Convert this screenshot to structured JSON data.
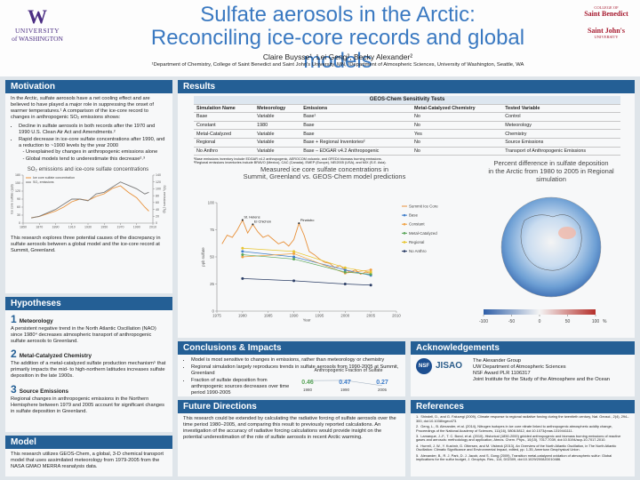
{
  "header": {
    "title_line1": "Sulfate aerosols in the Arctic:",
    "title_line2": "Reconciling ice-core records and global models",
    "authors": "Claire Buysse¹, Lei Geng², Becky Alexander²",
    "affiliations": "¹Department of Chemistry, College of Saint Benedict and Saint John's University, MN, ²Department of Atmospheric Sciences, University of Washington, Seattle, WA",
    "left_logo": [
      "UNIVERSITY",
      "of WASHINGTON"
    ],
    "right_logo": [
      "COLLEGE OF",
      "Saint Benedict",
      "Saint John's",
      "UNIVERSITY"
    ]
  },
  "motivation": {
    "title": "Motivation",
    "intro": "In the Arctic, sulfate aerosols have a net cooling effect and are believed to have played a major role in suppressing the onset of warmer temperatures.¹ A comparison of the ice-core record to changes in anthropogenic SO₂ emissions shows:",
    "bullets": [
      {
        "text": "Decline in sulfate aerosols in both records after the 1970 and 1990 U.S. Clean Air Act and Amendments.²",
        "sub": []
      },
      {
        "text": "Rapid decrease in ice-core sulfate concentrations after 1990, and a reduction to ~1900 levels by the year 2000",
        "sub": [
          "Unexplained by changes in anthropogenic emissions alone",
          "Global models tend to underestimate this decrease²˒³"
        ]
      }
    ],
    "chart": {
      "type": "line",
      "title_lines": [
        "SO₂ emissions and ice-core sulfate concentrations"
      ],
      "ylabel": "Ice core sulfate (ppb)",
      "y2label": "SO₂ emissions (Tg)",
      "xlim": [
        1850,
        2010
      ],
      "xticks": [
        1850,
        1870,
        1890,
        1910,
        1930,
        1950,
        1970,
        1990,
        2010
      ],
      "ylim": [
        0,
        180
      ],
      "yticks": [
        0,
        30,
        60,
        90,
        120,
        150,
        180
      ],
      "y2lim": [
        0,
        140
      ],
      "y2ticks": [
        0,
        20,
        40,
        60,
        80,
        100,
        120,
        140
      ],
      "legend": "upper left",
      "x": [
        1860,
        1870,
        1880,
        1890,
        1900,
        1910,
        1920,
        1930,
        1940,
        1950,
        1960,
        1970,
        1980,
        1990,
        2000,
        2005
      ],
      "series": [
        {
          "name": "Ice core sulfate concentration",
          "color": "#e8913a",
          "values": [
            20,
            25,
            35,
            45,
            60,
            80,
            90,
            85,
            100,
            110,
            130,
            140,
            115,
            95,
            60,
            45
          ]
        },
        {
          "name": "SO₂ emissions",
          "color": "#7a7a7a",
          "axis": "y2",
          "values": [
            15,
            20,
            30,
            40,
            55,
            70,
            70,
            65,
            85,
            90,
            105,
            120,
            110,
            100,
            85,
            90
          ]
        }
      ]
    },
    "closing": "This research explores three potential causes of the discrepancy in sulfate aerosols between a global model and the ice-core record at Summit, Greenland."
  },
  "hypotheses": {
    "title": "Hypotheses",
    "items": [
      {
        "number": 1,
        "name": "Meteorology",
        "text": "A persistent negative trend in the North Atlantic Oscillation (NAO) since 1980⁴ decreases atmospheric transport of anthropogenic sulfate aerosols to Greenland."
      },
      {
        "number": 2,
        "name": "Metal-Catalyzed Chemistry",
        "text": "The addition of a metal-catalyzed sulfate production mechanism⁵ that primarily impacts the mid- to high-northern latitudes increases sulfate deposition in the late 1900s."
      },
      {
        "number": 3,
        "name": "Source Emissions",
        "text": "Regional changes in anthropogenic emissions in the Northern Hemisphere between 1979 and 2005 account for significant changes in sulfate deposition in Greenland."
      }
    ]
  },
  "model": {
    "title": "Model",
    "text": "This research utilizes GEOS-Chem, a global, 3-D chemical transport model that uses assimilated meteorology from 1979-2005 from the NASA GMAO MERRA reanalysis data."
  },
  "results": {
    "title": "Results",
    "table": {
      "title": "GEOS-Chem Sensitivity Tests",
      "columns": [
        "Simulation Name",
        "Meteorology",
        "Emissions",
        "Metal-Catalyzed Chemistry",
        "Tested Variable"
      ],
      "rows": [
        [
          "Base",
          "Variable",
          "Base¹",
          "No",
          "Control"
        ],
        [
          "Constant",
          "1980",
          "Base",
          "No",
          "Meteorology"
        ],
        [
          "Metal-Catalyzed",
          "Variable",
          "Base",
          "Yes",
          "Chemistry"
        ],
        [
          "Regional",
          "Variable",
          "Base + Regional Inventories²",
          "No",
          "Source Emissions"
        ],
        [
          "No Anthro",
          "Variable",
          "Base – EDGAR v4.2 Anthropogenic",
          "No",
          "Transport of Anthropogenic Emissions"
        ]
      ],
      "footnotes": [
        "¹Base emissions inventory include EDGAR v4.2 anthropogenic, AEROCOM volcanic, and GFED4 biomass burning emissions.",
        "²Regional emissions inventories include BRAVO (Mexico), CAC (Canada), EMEP (Europe), NEI2005 (USA), and MIX (S.E. Asia)."
      ]
    },
    "chart": {
      "type": "line",
      "title_lines": [
        "Measured ice core sulfate concentrations in",
        "Summit, Greenland vs. GEOS-Chem model predictions"
      ],
      "ylabel": "ppb sulfate",
      "xlabel": "Year",
      "xlim": [
        1975,
        2010
      ],
      "xticks": [
        1975,
        1980,
        1985,
        1990,
        1995,
        2000,
        2005,
        2010
      ],
      "ylim": [
        0,
        100
      ],
      "yticks": [
        0,
        25,
        50,
        75,
        100
      ],
      "legend": "right",
      "series": [
        {
          "name": "Summit Ice Core",
          "color": "#e8913a",
          "x": [
            1976,
            1977,
            1978,
            1979,
            1980,
            1981,
            1982,
            1983,
            1984,
            1985,
            1986,
            1987,
            1988,
            1989,
            1990,
            1991,
            1992,
            1993,
            1994,
            1995,
            1996,
            1997,
            1998,
            1999,
            2000,
            2001,
            2002,
            2003,
            2004,
            2005
          ],
          "values": [
            62,
            70,
            68,
            75,
            84,
            72,
            80,
            73,
            68,
            70,
            66,
            62,
            64,
            60,
            66,
            81,
            70,
            55,
            52,
            48,
            45,
            44,
            40,
            42,
            38,
            36,
            38,
            34,
            36,
            35
          ]
        },
        {
          "name": "Base",
          "color": "#3d7cc9",
          "markers": true,
          "x": [
            1980,
            1990,
            2000,
            2005
          ],
          "values": [
            55,
            50,
            38,
            33
          ]
        },
        {
          "name": "Constant",
          "color": "#f0a040",
          "markers": true,
          "x": [
            1980,
            1990,
            2000,
            2005
          ],
          "values": [
            50,
            53,
            35,
            38
          ]
        },
        {
          "name": "Metal-Catalyzed",
          "color": "#5aa55a",
          "markers": true,
          "x": [
            1980,
            1990,
            2000,
            2005
          ],
          "values": [
            52,
            48,
            36,
            34
          ]
        },
        {
          "name": "Regional",
          "color": "#e8c530",
          "markers": true,
          "x": [
            1980,
            1990,
            2000,
            2005
          ],
          "values": [
            58,
            55,
            40,
            36
          ]
        },
        {
          "name": "No Anthro",
          "color": "#2c3e66",
          "markers": true,
          "x": [
            1980,
            1990,
            2000,
            2005
          ],
          "values": [
            30,
            28,
            25,
            24
          ]
        }
      ],
      "annotations": [
        {
          "text": "St. Helens",
          "x": 1980
        },
        {
          "text": "El Chichón",
          "x": 1982
        },
        {
          "text": "Pinatubo",
          "x": 1991
        }
      ]
    },
    "map": {
      "title_lines": [
        "Percent difference in sulfate deposition",
        "in the Arctic from 1980 to 2005 in Regional",
        "simulation"
      ],
      "colorbar_ticks": [
        -100,
        -50,
        0,
        50,
        100
      ],
      "unit": "%"
    }
  },
  "conclusions": {
    "title": "Conclusions & Impacts",
    "bullets": [
      "Model is most sensitive to changes in emissions, rather than meteorology or chemistry",
      "Regional simulation largely reproduces trends in sulfate aerosols from 1990-2005 at Summit, Greenland",
      "Fraction of sulfate deposition from anthropogenic sources decreases over time period 1990-2005"
    ],
    "fraction": {
      "title": "Anthropogenic Fraction of Sulfate",
      "categories": [
        1980,
        1990,
        2005
      ],
      "values": [
        0.46,
        0.47,
        0.27
      ],
      "colors": [
        "#5aa55a",
        "#3d7cc9",
        "#3d7cc9"
      ]
    }
  },
  "future": {
    "title": "Future Directions",
    "text": "This research could be extended by calculating the radiative forcing of sulfate aerosols over the time period 1980–2005, and comparing this result to previously reported calculations. An investigation of the accuracy of radiative forcing calculations would provide insight on the potential underestimation of the role of sulfate aerosols in recent Arctic warming."
  },
  "acknowledgements": {
    "title": "Acknowledgements",
    "lines": [
      "The Alexander Group",
      "UW Department of Atmospheric Sciences",
      "NSF Award PLR 1106317",
      "Joint Institute for the Study of the Atmosphere and the Ocean"
    ],
    "logos": [
      "NSF",
      "JISAO"
    ]
  },
  "references": {
    "title": "References",
    "items": [
      {
        "number": "1.",
        "text": "Shindell, D., and G. Faluvegi (2009), Climate response to regional radiative forcing during the twentieth century, Nat. Geosci., 2(4), 294–300, doi:10.1038/ngeo473."
      },
      {
        "number": "2.",
        "text": "Geng, L., B. Alexander, et al. (2014), Nitrogen isotopes in ice core nitrate linked to anthropogenic atmospheric acidity change, Proceedings of the National Academy of Sciences, 111(16), 5808-5812, doi:10.1073/pnas.1319441111."
      },
      {
        "number": "3.",
        "text": "Lamarque, J.-F., T. C. Bond, et al. (2010), Historical (1850-2000) gridded anthropogenic and biomass burning emissions of reactive gases and aerosols: methodology and application, Atmos. Chem. Phys., 10(15), 7017-7039, doi:10.5194/acp-10-7017-2010."
      },
      {
        "number": "4.",
        "text": "Hurrell, J. W., Y. Kushnir, G. Ottersen, and M. Visbeck (2013), An Overview of the North Atlantic Oscillation, in The North Atlantic Oscillation: Climatic Significance and Environmental Impact, edited, pp. 1-35, American Geophysical Union."
      },
      {
        "number": "5.",
        "text": "Alexander, B., R. J. Park, D. J. Jacob, and S. Gong (2009), Transition metal-catalyzed oxidation of atmospheric sulfur: Global implications for the sulfur budget, J. Geophys. Res., 114, D02309, doi:10.1029/2008JD010486."
      }
    ]
  }
}
